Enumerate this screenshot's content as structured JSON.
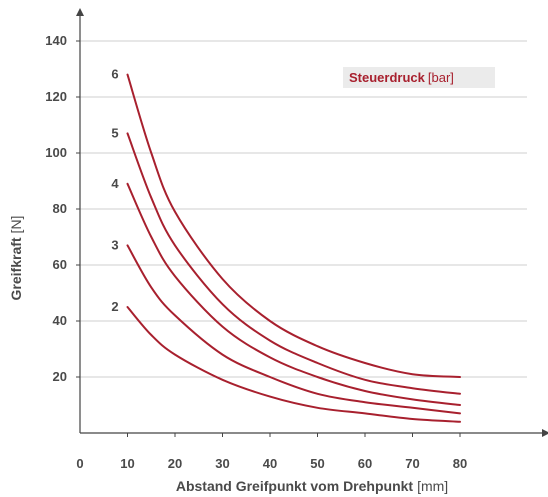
{
  "chart_data": {
    "type": "line",
    "xlabel_bold": "Abstand Greifpunkt vom Drehpunkt",
    "xlabel_unit": "[mm]",
    "ylabel_bold": "Greifkraft",
    "ylabel_unit": "[N]",
    "legend_title_bold": "Steuerdruck",
    "legend_title_unit": "[bar]",
    "legend_placement": "top-right",
    "grid": "horizontal",
    "x_origin_label": "0",
    "xlim": [
      0,
      90
    ],
    "ylim": [
      0,
      150
    ],
    "x_ticks": [
      10,
      20,
      30,
      40,
      50,
      60,
      70,
      80
    ],
    "y_ticks": [
      20,
      40,
      60,
      80,
      100,
      120,
      140
    ],
    "line_color": "#a8202e",
    "series": [
      {
        "name": "2",
        "x": [
          10,
          15,
          20,
          30,
          40,
          50,
          60,
          70,
          80
        ],
        "y": [
          45,
          35,
          28,
          19,
          13,
          9,
          7,
          5,
          4
        ]
      },
      {
        "name": "3",
        "x": [
          10,
          15,
          20,
          30,
          40,
          50,
          60,
          70,
          80
        ],
        "y": [
          67,
          52,
          42,
          28,
          20,
          14,
          11,
          9,
          7
        ]
      },
      {
        "name": "4",
        "x": [
          10,
          15,
          20,
          30,
          40,
          50,
          60,
          70,
          80
        ],
        "y": [
          89,
          70,
          56,
          38,
          27,
          20,
          15,
          12,
          10
        ]
      },
      {
        "name": "5",
        "x": [
          10,
          15,
          20,
          30,
          40,
          50,
          60,
          70,
          80
        ],
        "y": [
          107,
          84,
          67,
          46,
          33,
          25,
          19,
          16,
          14
        ]
      },
      {
        "name": "6",
        "x": [
          10,
          15,
          20,
          30,
          40,
          50,
          60,
          70,
          80
        ],
        "y": [
          128,
          100,
          79,
          55,
          40,
          31,
          25,
          21,
          20
        ]
      }
    ]
  }
}
